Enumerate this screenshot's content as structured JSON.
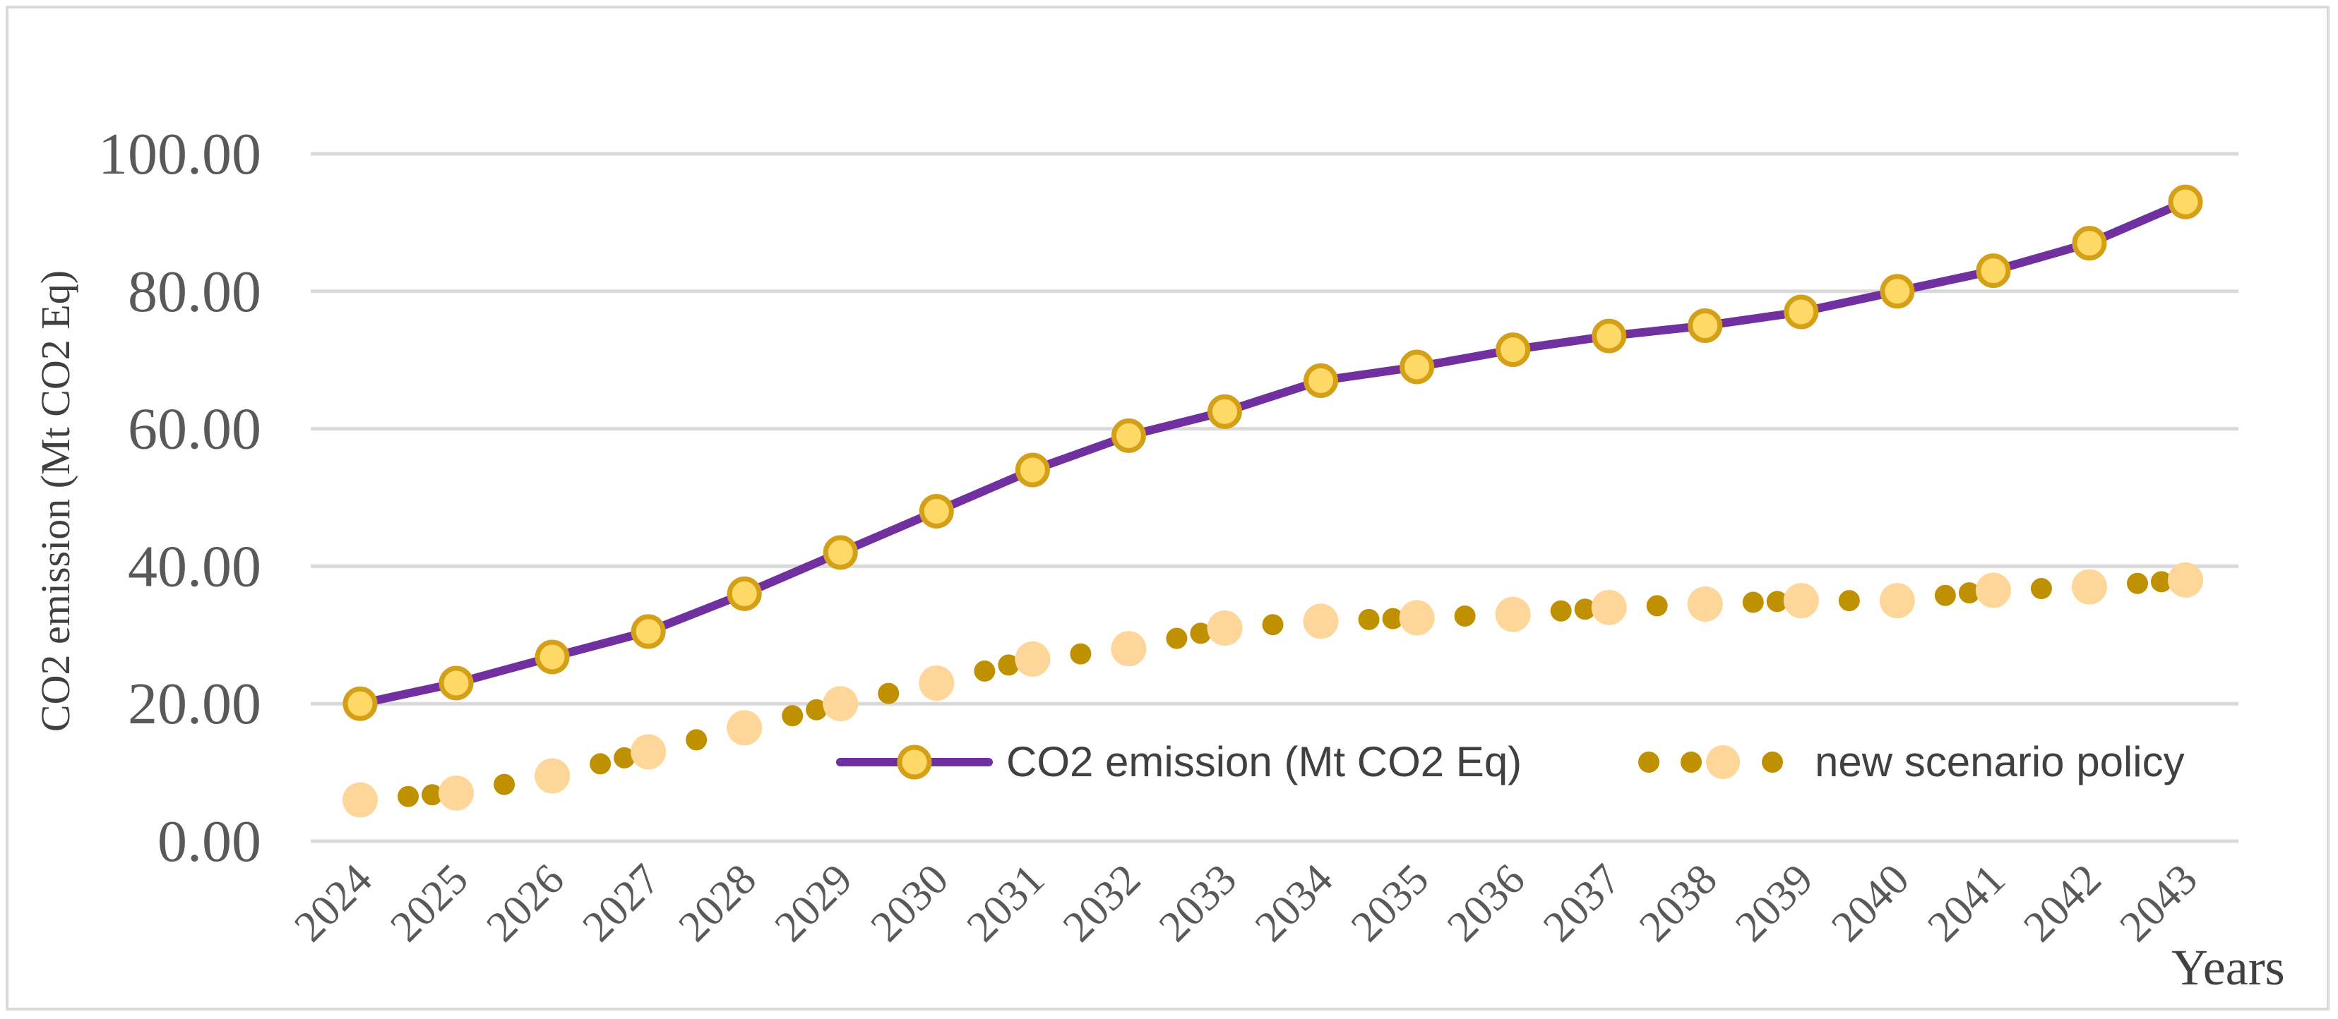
{
  "chart_data": {
    "type": "line",
    "title": "",
    "xlabel": "Years",
    "ylabel": "CO2 emission (Mt CO2 Eq)",
    "ylim": [
      0,
      100
    ],
    "yticks": [
      "0.00",
      "20.00",
      "40.00",
      "60.00",
      "80.00",
      "100.00"
    ],
    "ytick_values": [
      0,
      20,
      40,
      60,
      80,
      100
    ],
    "categories": [
      "2024",
      "2025",
      "2026",
      "2027",
      "2028",
      "2029",
      "2030",
      "2031",
      "2032",
      "2033",
      "2034",
      "2035",
      "2036",
      "2037",
      "2038",
      "2039",
      "2040",
      "2041",
      "2042",
      "2043"
    ],
    "grid": true,
    "legend_position": "bottom-right",
    "series": [
      {
        "name": "CO2 emission (Mt CO2 Eq)",
        "style": "solid-line-with-markers",
        "line_color": "#7030a0",
        "marker_fill": "#ffd966",
        "marker_edge": "#d4a017",
        "values": [
          20.0,
          23.0,
          26.8,
          30.5,
          36.0,
          42.0,
          48.0,
          54.0,
          59.0,
          62.5,
          67.0,
          69.0,
          71.5,
          73.5,
          75.0,
          77.0,
          80.0,
          83.0,
          87.0,
          93.0
        ]
      },
      {
        "name": "new scenario policy",
        "style": "dotted-line-with-markers",
        "dot_color": "#bf9000",
        "marker_fill": "#ffd699",
        "values": [
          6.0,
          7.0,
          9.5,
          13.0,
          16.5,
          20.0,
          23.0,
          26.5,
          28.0,
          31.0,
          32.0,
          32.5,
          33.0,
          34.0,
          34.5,
          35.0,
          35.0,
          36.5,
          37.0,
          38.0
        ]
      }
    ]
  },
  "colors": {
    "gridline": "#d9d9d9",
    "axis": "#d9d9d9",
    "frame": "#d9d9d9"
  }
}
